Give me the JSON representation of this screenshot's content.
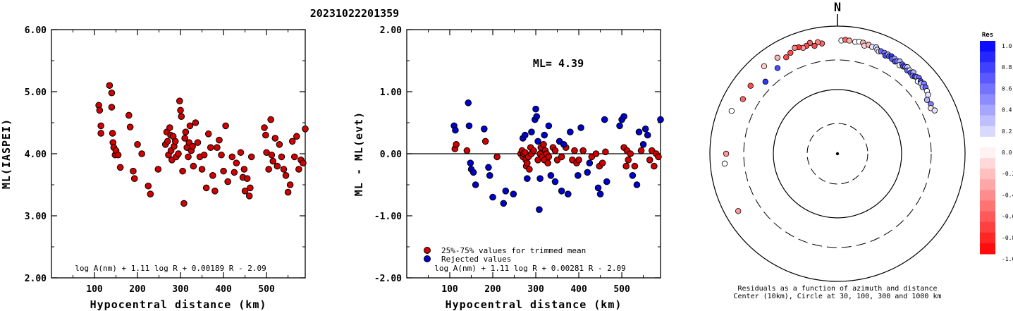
{
  "title": "20231022201359",
  "chart_data": [
    {
      "type": "scatter",
      "ylabel": "ML(IASPEI)",
      "xlabel": "Hypocentral distance (km)",
      "xlim": [
        0,
        590
      ],
      "ylim": [
        2.0,
        6.0
      ],
      "xticks": [
        "100",
        "200",
        "300",
        "400",
        "500"
      ],
      "yticks": [
        "2.00",
        "3.00",
        "4.00",
        "5.00",
        "6.00"
      ],
      "formula": "log A(nm) + 1.11 log R + 0.00189 R - 2.09",
      "point_color": "#d00000",
      "x": [
        110,
        112,
        115,
        115,
        135,
        140,
        140,
        142,
        143,
        145,
        148,
        150,
        155,
        160,
        180,
        183,
        190,
        193,
        200,
        210,
        225,
        230,
        248,
        265,
        268,
        270,
        272,
        275,
        277,
        278,
        280,
        283,
        285,
        288,
        290,
        295,
        298,
        300,
        302,
        305,
        308,
        310,
        312,
        315,
        318,
        320,
        322,
        325,
        328,
        330,
        335,
        340,
        345,
        350,
        355,
        360,
        365,
        370,
        375,
        380,
        385,
        390,
        395,
        400,
        405,
        410,
        420,
        425,
        430,
        440,
        445,
        448,
        450,
        455,
        460,
        462,
        465,
        495,
        498,
        500,
        505,
        510,
        512,
        515,
        520,
        525,
        530,
        535,
        540,
        545,
        550,
        555,
        560,
        565,
        570,
        575,
        580,
        585,
        590
      ],
      "y": [
        4.78,
        4.7,
        4.45,
        4.33,
        5.1,
        4.98,
        4.75,
        4.33,
        4.18,
        4.1,
        3.98,
        4.05,
        3.98,
        3.78,
        4.62,
        4.43,
        3.72,
        3.6,
        4.15,
        4.0,
        3.48,
        3.35,
        3.75,
        4.15,
        4.35,
        4.2,
        3.98,
        4.42,
        4.3,
        4.05,
        3.9,
        4.28,
        4.12,
        4.2,
        3.95,
        4.0,
        4.85,
        4.7,
        4.6,
        3.72,
        3.2,
        4.25,
        4.35,
        4.1,
        3.95,
        4.18,
        4.45,
        4.05,
        4.12,
        3.8,
        4.5,
        4.18,
        3.95,
        3.75,
        3.98,
        3.45,
        4.32,
        4.1,
        3.65,
        3.4,
        4.1,
        4.22,
        3.98,
        3.72,
        4.45,
        3.55,
        3.95,
        3.7,
        3.85,
        4.02,
        3.62,
        3.75,
        3.4,
        3.6,
        3.32,
        3.45,
        3.95,
        4.42,
        4.3,
        4.02,
        3.75,
        4.55,
        3.98,
        3.88,
        4.25,
        3.8,
        4.15,
        3.95,
        3.75,
        3.65,
        3.38,
        3.5,
        4.2,
        3.95,
        4.28,
        3.75,
        3.9,
        3.85,
        4.4
      ]
    },
    {
      "type": "scatter",
      "ylabel": "ML - ML(evt)",
      "xlabel": "Hypocentral distance (km)",
      "xlim": [
        0,
        590
      ],
      "ylim": [
        -2.0,
        2.0
      ],
      "xticks": [
        "100",
        "200",
        "300",
        "400",
        "500"
      ],
      "yticks": [
        "-2.00",
        "-1.00",
        "0.00",
        "1.00",
        "2.00"
      ],
      "annotation": "ML= 4.39",
      "formula": "log A(nm) + 1.11 log R + 0.00281 R - 2.09",
      "legend": [
        {
          "label": "25%-75% values for trimmed mean",
          "color": "#d00000"
        },
        {
          "label": "Rejected values",
          "color": "#0000cc"
        }
      ],
      "series": [
        {
          "name": "25%-75% values for trimmed mean",
          "color": "#d00000",
          "x": [
            112,
            115,
            140,
            183,
            210,
            265,
            268,
            270,
            272,
            275,
            277,
            278,
            280,
            283,
            285,
            288,
            290,
            295,
            305,
            310,
            312,
            315,
            318,
            320,
            322,
            325,
            328,
            330,
            340,
            345,
            350,
            360,
            370,
            385,
            390,
            395,
            400,
            410,
            430,
            440,
            448,
            455,
            462,
            505,
            510,
            512,
            515,
            520,
            530,
            545,
            565,
            570,
            575,
            580,
            585
          ],
          "y": [
            0.08,
            0.15,
            0.05,
            0.2,
            -0.05,
            0.0,
            0.05,
            -0.05,
            0.0,
            0.02,
            -0.1,
            -0.2,
            -0.15,
            -0.05,
            -0.25,
            0.1,
            0.0,
            0.05,
            -0.1,
            0.0,
            0.1,
            -0.05,
            0.15,
            -0.1,
            0.05,
            0.0,
            -0.15,
            -0.05,
            0.1,
            0.05,
            -0.1,
            -0.05,
            0.1,
            -0.1,
            0.05,
            -0.15,
            -0.1,
            0.05,
            -0.05,
            0.0,
            -0.2,
            -0.15,
            0.03,
            0.1,
            -0.2,
            0.05,
            -0.1,
            0.0,
            -0.2,
            0.05,
            -0.1,
            0.05,
            -0.2,
            0.0,
            -0.05
          ]
        },
        {
          "name": "Rejected values",
          "color": "#0000cc",
          "x": [
            110,
            113,
            143,
            145,
            148,
            150,
            155,
            160,
            180,
            190,
            193,
            200,
            225,
            230,
            248,
            270,
            275,
            280,
            290,
            298,
            300,
            302,
            305,
            308,
            310,
            320,
            330,
            335,
            345,
            355,
            360,
            365,
            375,
            380,
            398,
            405,
            420,
            425,
            445,
            450,
            460,
            465,
            495,
            500,
            505,
            525,
            535,
            540,
            550,
            555,
            560,
            590
          ],
          "y": [
            0.45,
            0.38,
            0.82,
            0.45,
            -0.15,
            -0.25,
            -0.3,
            -0.5,
            0.4,
            -0.22,
            -0.35,
            -0.7,
            -0.8,
            -0.6,
            -0.65,
            0.25,
            0.3,
            -0.4,
            0.35,
            0.55,
            0.72,
            0.6,
            0.2,
            -0.9,
            -0.4,
            0.3,
            0.45,
            -0.35,
            -0.45,
            0.2,
            -0.6,
            0.15,
            -0.65,
            0.35,
            -0.35,
            0.42,
            -0.3,
            -0.15,
            -0.55,
            -0.65,
            0.55,
            -0.45,
            0.45,
            0.55,
            0.6,
            -0.35,
            -0.5,
            0.35,
            0.15,
            0.4,
            0.3,
            0.55
          ]
        }
      ]
    },
    {
      "type": "scatter",
      "subtype": "polar",
      "north_label": "N",
      "caption_line1": "Residuals as a function of azimuth and distance",
      "caption_line2": "Center (10km), Circle at 30, 100, 300 and 1000 km",
      "colorbar_title": "Res",
      "colorbar_ticks": [
        "1.0",
        "0.8",
        "0.6",
        "0.4",
        "0.2",
        "0.0",
        "-0.2",
        "-0.4",
        "-0.6",
        "-0.8",
        "-1.0"
      ],
      "colorbar_range": [
        -1.0,
        1.0
      ],
      "rings_km": [
        30,
        100,
        300,
        1000
      ],
      "azimuth_deg": [
        2,
        4,
        6,
        9,
        11,
        13,
        14,
        16,
        18,
        20,
        21,
        22,
        23,
        25,
        26,
        27,
        28,
        29,
        30,
        31,
        32,
        33,
        34,
        35,
        36,
        37,
        38,
        39,
        40,
        41,
        42,
        43,
        44,
        45,
        46,
        47,
        48,
        49,
        50,
        51,
        52,
        53,
        55,
        57,
        59,
        62,
        64,
        66,
        -8,
        -10,
        -12,
        -14,
        -16,
        -18,
        -20,
        -22,
        -25,
        -28,
        -32,
        -35,
        -40,
        -45,
        -52,
        -60,
        -68,
        -90,
        -95,
        -120
      ],
      "distance_km": [
        600,
        620,
        610,
        600,
        620,
        615,
        560,
        600,
        580,
        600,
        560,
        540,
        560,
        560,
        520,
        560,
        540,
        560,
        520,
        550,
        510,
        540,
        560,
        500,
        540,
        520,
        540,
        560,
        510,
        540,
        520,
        560,
        500,
        520,
        540,
        560,
        500,
        540,
        520,
        560,
        500,
        540,
        520,
        500,
        440,
        460,
        430,
        470,
        560,
        600,
        540,
        620,
        580,
        560,
        600,
        620,
        560,
        520,
        600,
        440,
        620,
        400,
        540,
        520,
        620,
        560,
        600,
        630
      ],
      "residual": [
        0.0,
        -0.6,
        -0.3,
        0.0,
        0.0,
        -0.3,
        -0.2,
        -0.3,
        0.1,
        0.2,
        0.0,
        -0.1,
        0.6,
        0.5,
        0.7,
        0.4,
        0.6,
        0.8,
        0.6,
        0.4,
        0.7,
        0.5,
        0.3,
        0.0,
        0.6,
        0.7,
        0.5,
        0.2,
        0.6,
        0.0,
        0.7,
        0.3,
        0.5,
        0.8,
        0.4,
        0.6,
        0.0,
        0.7,
        0.2,
        0.5,
        0.3,
        0.6,
        0.0,
        0.1,
        0.3,
        0.5,
        -0.1,
        0.1,
        -0.6,
        -0.5,
        -0.7,
        -0.6,
        -0.7,
        -0.4,
        -0.8,
        -0.5,
        -0.7,
        -0.7,
        -0.3,
        0.7,
        -0.2,
        0.8,
        -0.7,
        -0.6,
        0.0,
        -0.4,
        0.0,
        -0.4
      ]
    }
  ]
}
